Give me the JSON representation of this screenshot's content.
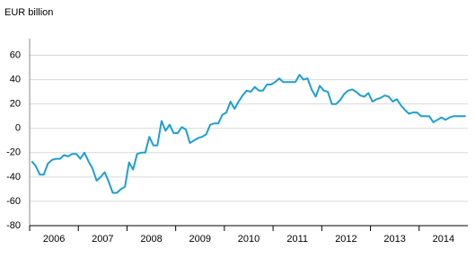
{
  "chart_data": {
    "type": "line",
    "y_label": "EUR billion",
    "categories": [
      "2006",
      null,
      null,
      null,
      null,
      null,
      null,
      null,
      null,
      null,
      null,
      null,
      "2007",
      null,
      null,
      null,
      null,
      null,
      null,
      null,
      null,
      null,
      null,
      null,
      "2008",
      null,
      null,
      null,
      null,
      null,
      null,
      null,
      null,
      null,
      null,
      null,
      "2009",
      null,
      null,
      null,
      null,
      null,
      null,
      null,
      null,
      null,
      null,
      null,
      "2010",
      null,
      null,
      null,
      null,
      null,
      null,
      null,
      null,
      null,
      null,
      null,
      "2011",
      null,
      null,
      null,
      null,
      null,
      null,
      null,
      null,
      null,
      null,
      null,
      "2012",
      null,
      null,
      null,
      null,
      null,
      null,
      null,
      null,
      null,
      null,
      null,
      "2013",
      null,
      null,
      null,
      null,
      null,
      null,
      null,
      null,
      null,
      null,
      null,
      "2014",
      null,
      null,
      null,
      null,
      null,
      null,
      null,
      null,
      null,
      null,
      null
    ],
    "values": [
      -27,
      -31,
      -38,
      -38,
      -29,
      -26,
      -25,
      -25,
      -22,
      -23,
      -21,
      -21,
      -25,
      -20,
      -27,
      -33,
      -43,
      -40,
      -36,
      -44,
      -53,
      -53,
      -50,
      -48,
      -28,
      -34,
      -21,
      -20,
      -20,
      -7,
      -14,
      -14,
      6,
      -2,
      3,
      -4,
      -4,
      1,
      -1,
      -12,
      -10,
      -8,
      -7,
      -5,
      3,
      4,
      4,
      11,
      13,
      22,
      16,
      22,
      27,
      31,
      30,
      34,
      31,
      31,
      36,
      36,
      38,
      41,
      38,
      38,
      38,
      38,
      44,
      40,
      41,
      32,
      26,
      35,
      31,
      30,
      20,
      20,
      23,
      28,
      31,
      32,
      30,
      27,
      26,
      29,
      22,
      24,
      25,
      27,
      26,
      22,
      24,
      19,
      15,
      12,
      13,
      13,
      10,
      10,
      10,
      5,
      7,
      9,
      7,
      9,
      10,
      10,
      10,
      10
    ],
    "color": "#1e9fd3",
    "ylim": [
      -80,
      70
    ],
    "yticks": [
      -80,
      -60,
      -40,
      -20,
      0,
      20,
      40,
      60
    ],
    "grid": true
  }
}
